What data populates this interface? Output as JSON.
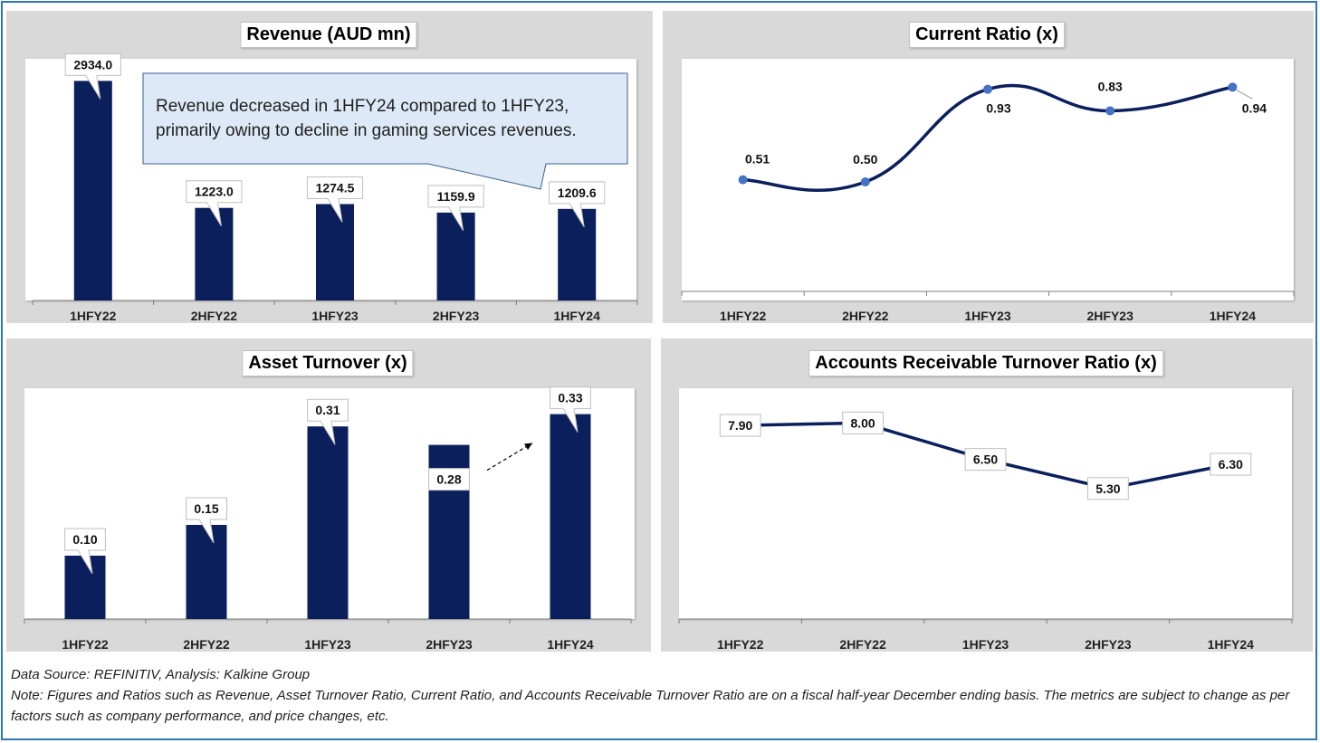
{
  "categories": [
    "1HFY22",
    "2HFY22",
    "1HFY23",
    "2HFY23",
    "1HFY24"
  ],
  "colors": {
    "bar": "#0b1f5c",
    "line": "#0b1f5c",
    "marker": "#4472c4",
    "panel": "#d9d9d9",
    "callout": "#dde9f7"
  },
  "chart_data": [
    {
      "id": "revenue",
      "type": "bar",
      "title": "Revenue (AUD mn)",
      "categories": [
        "1HFY22",
        "2HFY22",
        "1HFY23",
        "2HFY23",
        "1HFY24"
      ],
      "values": [
        2934.0,
        1223.0,
        1274.5,
        1159.9,
        1209.6
      ],
      "data_labels": [
        "2934.0",
        "1223.0",
        "1274.5",
        "1159.9",
        "1209.6"
      ],
      "ylim": [
        0,
        3000
      ],
      "annotation": "Revenue decreased in 1HFY24 compared to 1HFY23, primarily owing to decline in gaming services revenues."
    },
    {
      "id": "current_ratio",
      "type": "line",
      "title": "Current Ratio (x)",
      "categories": [
        "1HFY22",
        "2HFY22",
        "1HFY23",
        "2HFY23",
        "1HFY24"
      ],
      "values": [
        0.51,
        0.5,
        0.93,
        0.83,
        0.94
      ],
      "data_labels": [
        "0.51",
        "0.50",
        "0.93",
        "0.83",
        "0.94"
      ],
      "ylim": [
        0,
        1.0
      ]
    },
    {
      "id": "asset_turnover",
      "type": "bar",
      "title": "Asset Turnover (x)",
      "categories": [
        "1HFY22",
        "2HFY22",
        "1HFY23",
        "2HFY23",
        "1HFY24"
      ],
      "values": [
        0.1,
        0.15,
        0.31,
        0.28,
        0.33
      ],
      "data_labels": [
        "0.10",
        "0.15",
        "0.31",
        "0.28",
        "0.33"
      ],
      "ylim": [
        0,
        0.35
      ]
    },
    {
      "id": "ar_turnover",
      "type": "line",
      "title": "Accounts Receivable Turnover Ratio (x)",
      "categories": [
        "1HFY22",
        "2HFY22",
        "1HFY23",
        "2HFY23",
        "1HFY24"
      ],
      "values": [
        7.9,
        8.0,
        6.5,
        5.3,
        6.3
      ],
      "data_labels": [
        "7.90",
        "8.00",
        "6.50",
        "5.30",
        "6.30"
      ],
      "ylim": [
        0,
        8.5
      ]
    }
  ],
  "footer": {
    "source": "Data Source: REFINITIV, Analysis: Kalkine Group",
    "note": "Note: Figures and Ratios such as Revenue, Asset Turnover Ratio, Current Ratio, and Accounts Receivable Turnover Ratio are on a fiscal half-year December ending basis. The metrics are subject to change as per factors such as company performance, and price changes, etc."
  }
}
